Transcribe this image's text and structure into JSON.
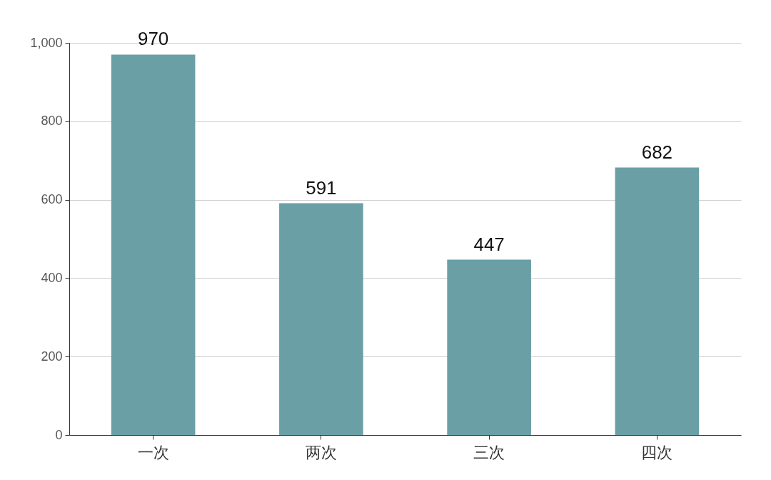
{
  "chart_data": {
    "type": "bar",
    "categories": [
      "一次",
      "两次",
      "三次",
      "四次"
    ],
    "values": [
      970,
      591,
      447,
      682
    ],
    "color": "#6a9fa6",
    "ylim": [
      0,
      1000
    ],
    "yticks": [
      0,
      200,
      400,
      600,
      800,
      {
        "value": 1000,
        "label": "1,000"
      }
    ],
    "grid": "y",
    "data_labels": true
  }
}
